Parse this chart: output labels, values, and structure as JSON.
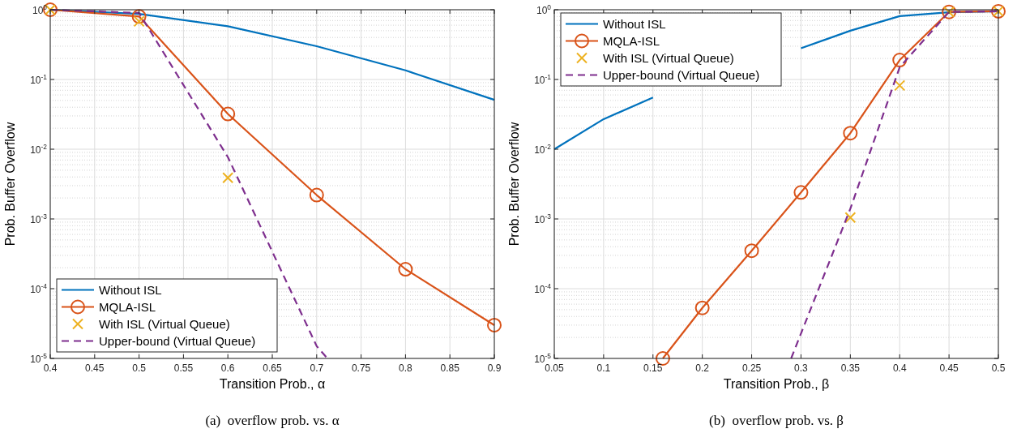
{
  "chart_data": [
    {
      "type": "line",
      "xlabel": "Transition Prob., α",
      "ylabel": "Prob. Buffer Overflow",
      "annotations": [
        "(a)  overflow prob. vs. α"
      ],
      "x": [
        0.4,
        0.5,
        0.6,
        0.7,
        0.8,
        0.9
      ],
      "xlim": [
        0.4,
        0.9
      ],
      "xticks": [
        0.4,
        0.45,
        0.5,
        0.55,
        0.6,
        0.65,
        0.7,
        0.75,
        0.8,
        0.85,
        0.9
      ],
      "ylim": [
        1e-05,
        1
      ],
      "yticks": [
        {
          "value": 1e-05,
          "label": "10$^{-5}$"
        },
        {
          "value": 0.0001,
          "label": "10$^{-4}$"
        },
        {
          "value": 0.001,
          "label": "10$^{-3}$"
        },
        {
          "value": 0.01,
          "label": "10$^{-2}$"
        },
        {
          "value": 0.1,
          "label": "10$^{-1}$"
        },
        {
          "value": 1,
          "label": "10$^{0}$"
        }
      ],
      "log": "y",
      "grid": true,
      "legend": "bottom left",
      "series": [
        {
          "name": "Without ISL",
          "color": "#0072bd",
          "values": [
            1,
            0.87,
            0.58,
            0.3,
            0.135,
            0.051
          ]
        },
        {
          "name": "MQLA-ISL",
          "color": "#d95319",
          "marker": "circle",
          "values": [
            1,
            0.8,
            0.032,
            0.0022,
            0.00019,
            3e-05
          ]
        },
        {
          "name": "With ISL (Virtual Queue)",
          "type": "scatter",
          "color": "#edb120",
          "marker": "cross",
          "x": [
            0.4,
            0.5,
            0.6
          ],
          "values": [
            1,
            0.68,
            0.0039
          ]
        },
        {
          "name": "Upper-bound (Virtual Queue)",
          "color": "#7e2f8e",
          "line_style": "dashed",
          "x": [
            0.4,
            0.5,
            0.6,
            0.7,
            0.712
          ],
          "values": [
            1,
            0.9,
            0.0077,
            1.5e-05,
            1e-05
          ]
        }
      ]
    },
    {
      "type": "line",
      "xlabel": "Transition Prob., β",
      "ylabel": "Prob. Buffer Overflow",
      "annotations": [
        "(b)  overflow prob. vs. β"
      ],
      "x": [
        0.05,
        0.1,
        0.15,
        0.2,
        0.25,
        0.3,
        0.35,
        0.4,
        0.45,
        0.5
      ],
      "xlim": [
        0.05,
        0.5
      ],
      "xticks": [
        0.05,
        0.1,
        0.15,
        0.2,
        0.25,
        0.3,
        0.35,
        0.4,
        0.45,
        0.5
      ],
      "ylim": [
        1e-05,
        1
      ],
      "yticks": [
        {
          "value": 1e-05,
          "label": "10$^{-5}$"
        },
        {
          "value": 0.0001,
          "label": "10$^{-4}$"
        },
        {
          "value": 0.001,
          "label": "10$^{-3}$"
        },
        {
          "value": 0.01,
          "label": "10$^{-2}$"
        },
        {
          "value": 0.1,
          "label": "10$^{-1}$"
        },
        {
          "value": 1,
          "label": "10$^{0}$"
        }
      ],
      "log": "y",
      "grid": true,
      "legend": "top left",
      "series": [
        {
          "name": "Without ISL",
          "color": "#0072bd",
          "values": [
            0.01,
            0.027,
            0.055,
            null,
            null,
            0.28,
            0.5,
            0.81,
            0.92,
            0.95
          ]
        },
        {
          "name": "MQLA-ISL",
          "color": "#d95319",
          "marker": "circle",
          "x": [
            0.16,
            0.2,
            0.25,
            0.3,
            0.35,
            0.4,
            0.45,
            0.5
          ],
          "values": [
            1e-05,
            5.3e-05,
            0.00035,
            0.0024,
            0.017,
            0.19,
            0.93,
            0.95
          ]
        },
        {
          "name": "With ISL (Virtual Queue)",
          "type": "scatter",
          "color": "#edb120",
          "marker": "cross",
          "x": [
            0.35,
            0.4,
            0.45,
            0.5
          ],
          "values": [
            0.00105,
            0.082,
            0.93,
            0.95
          ]
        },
        {
          "name": "Upper-bound (Virtual Queue)",
          "color": "#7e2f8e",
          "line_style": "dashed",
          "x": [
            0.29,
            0.35,
            0.4,
            0.45,
            0.5
          ],
          "values": [
            1e-05,
            0.0014,
            0.15,
            0.93,
            0.95
          ]
        }
      ]
    }
  ]
}
